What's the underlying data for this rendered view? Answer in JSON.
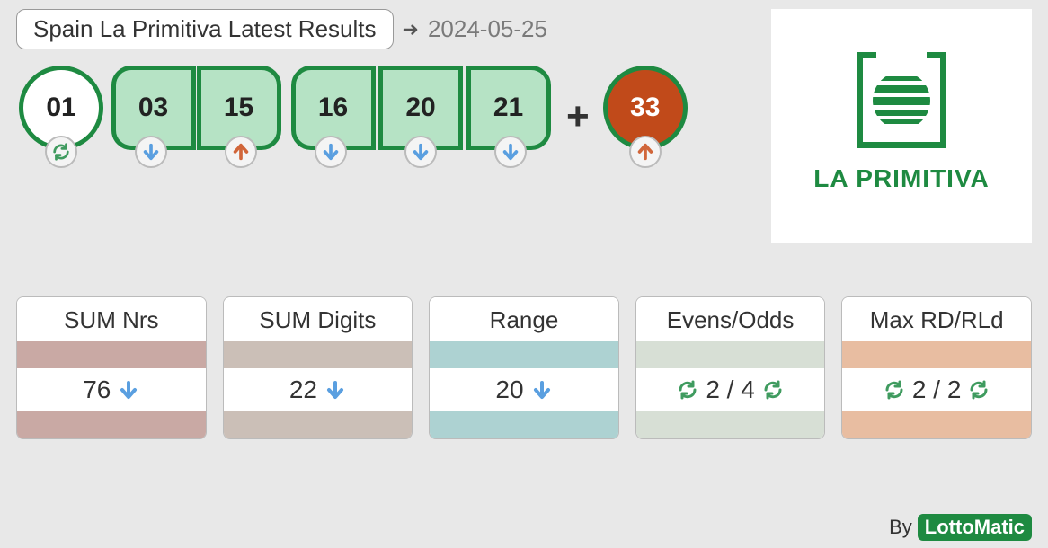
{
  "title": "Spain La Primitiva Latest Results",
  "date": "2024-05-25",
  "plus_symbol": "+",
  "colors": {
    "green": "#1e8a41",
    "ball_fill": "#b6e3c5",
    "bonus_fill": "#c14a1a",
    "arrow_down": "#5a9fe0",
    "arrow_up": "#d1663a",
    "refresh": "#3f9b5f"
  },
  "balls": [
    {
      "n": "01",
      "shape": "circle",
      "trend": "refresh"
    },
    {
      "n": "03",
      "shape": "pill-r",
      "trend": "down"
    },
    {
      "n": "15",
      "shape": "pill-l",
      "trend": "up"
    },
    {
      "n": "16",
      "shape": "pill-r",
      "trend": "down"
    },
    {
      "n": "20",
      "shape": "pill-m",
      "trend": "down"
    },
    {
      "n": "21",
      "shape": "pill-l",
      "trend": "down"
    }
  ],
  "bonus": {
    "n": "33",
    "trend": "up"
  },
  "logo_text": "LA PRIMITIVA",
  "stats": [
    {
      "title": "SUM Nrs",
      "value": "76",
      "trend": "down",
      "band": "#c9a9a4"
    },
    {
      "title": "SUM Digits",
      "value": "22",
      "trend": "down",
      "band": "#cbbfb7"
    },
    {
      "title": "Range",
      "value": "20",
      "trend": "down",
      "band": "#add2d2"
    },
    {
      "title": "Evens/Odds",
      "value": "2 / 4",
      "trend": "refresh2",
      "band": "#d7dfd5"
    },
    {
      "title": "Max RD/RLd",
      "value": "2 / 2",
      "trend": "refresh2",
      "band": "#e8bda1"
    }
  ],
  "footer": {
    "by": "By",
    "brand": "LottoMatic"
  }
}
